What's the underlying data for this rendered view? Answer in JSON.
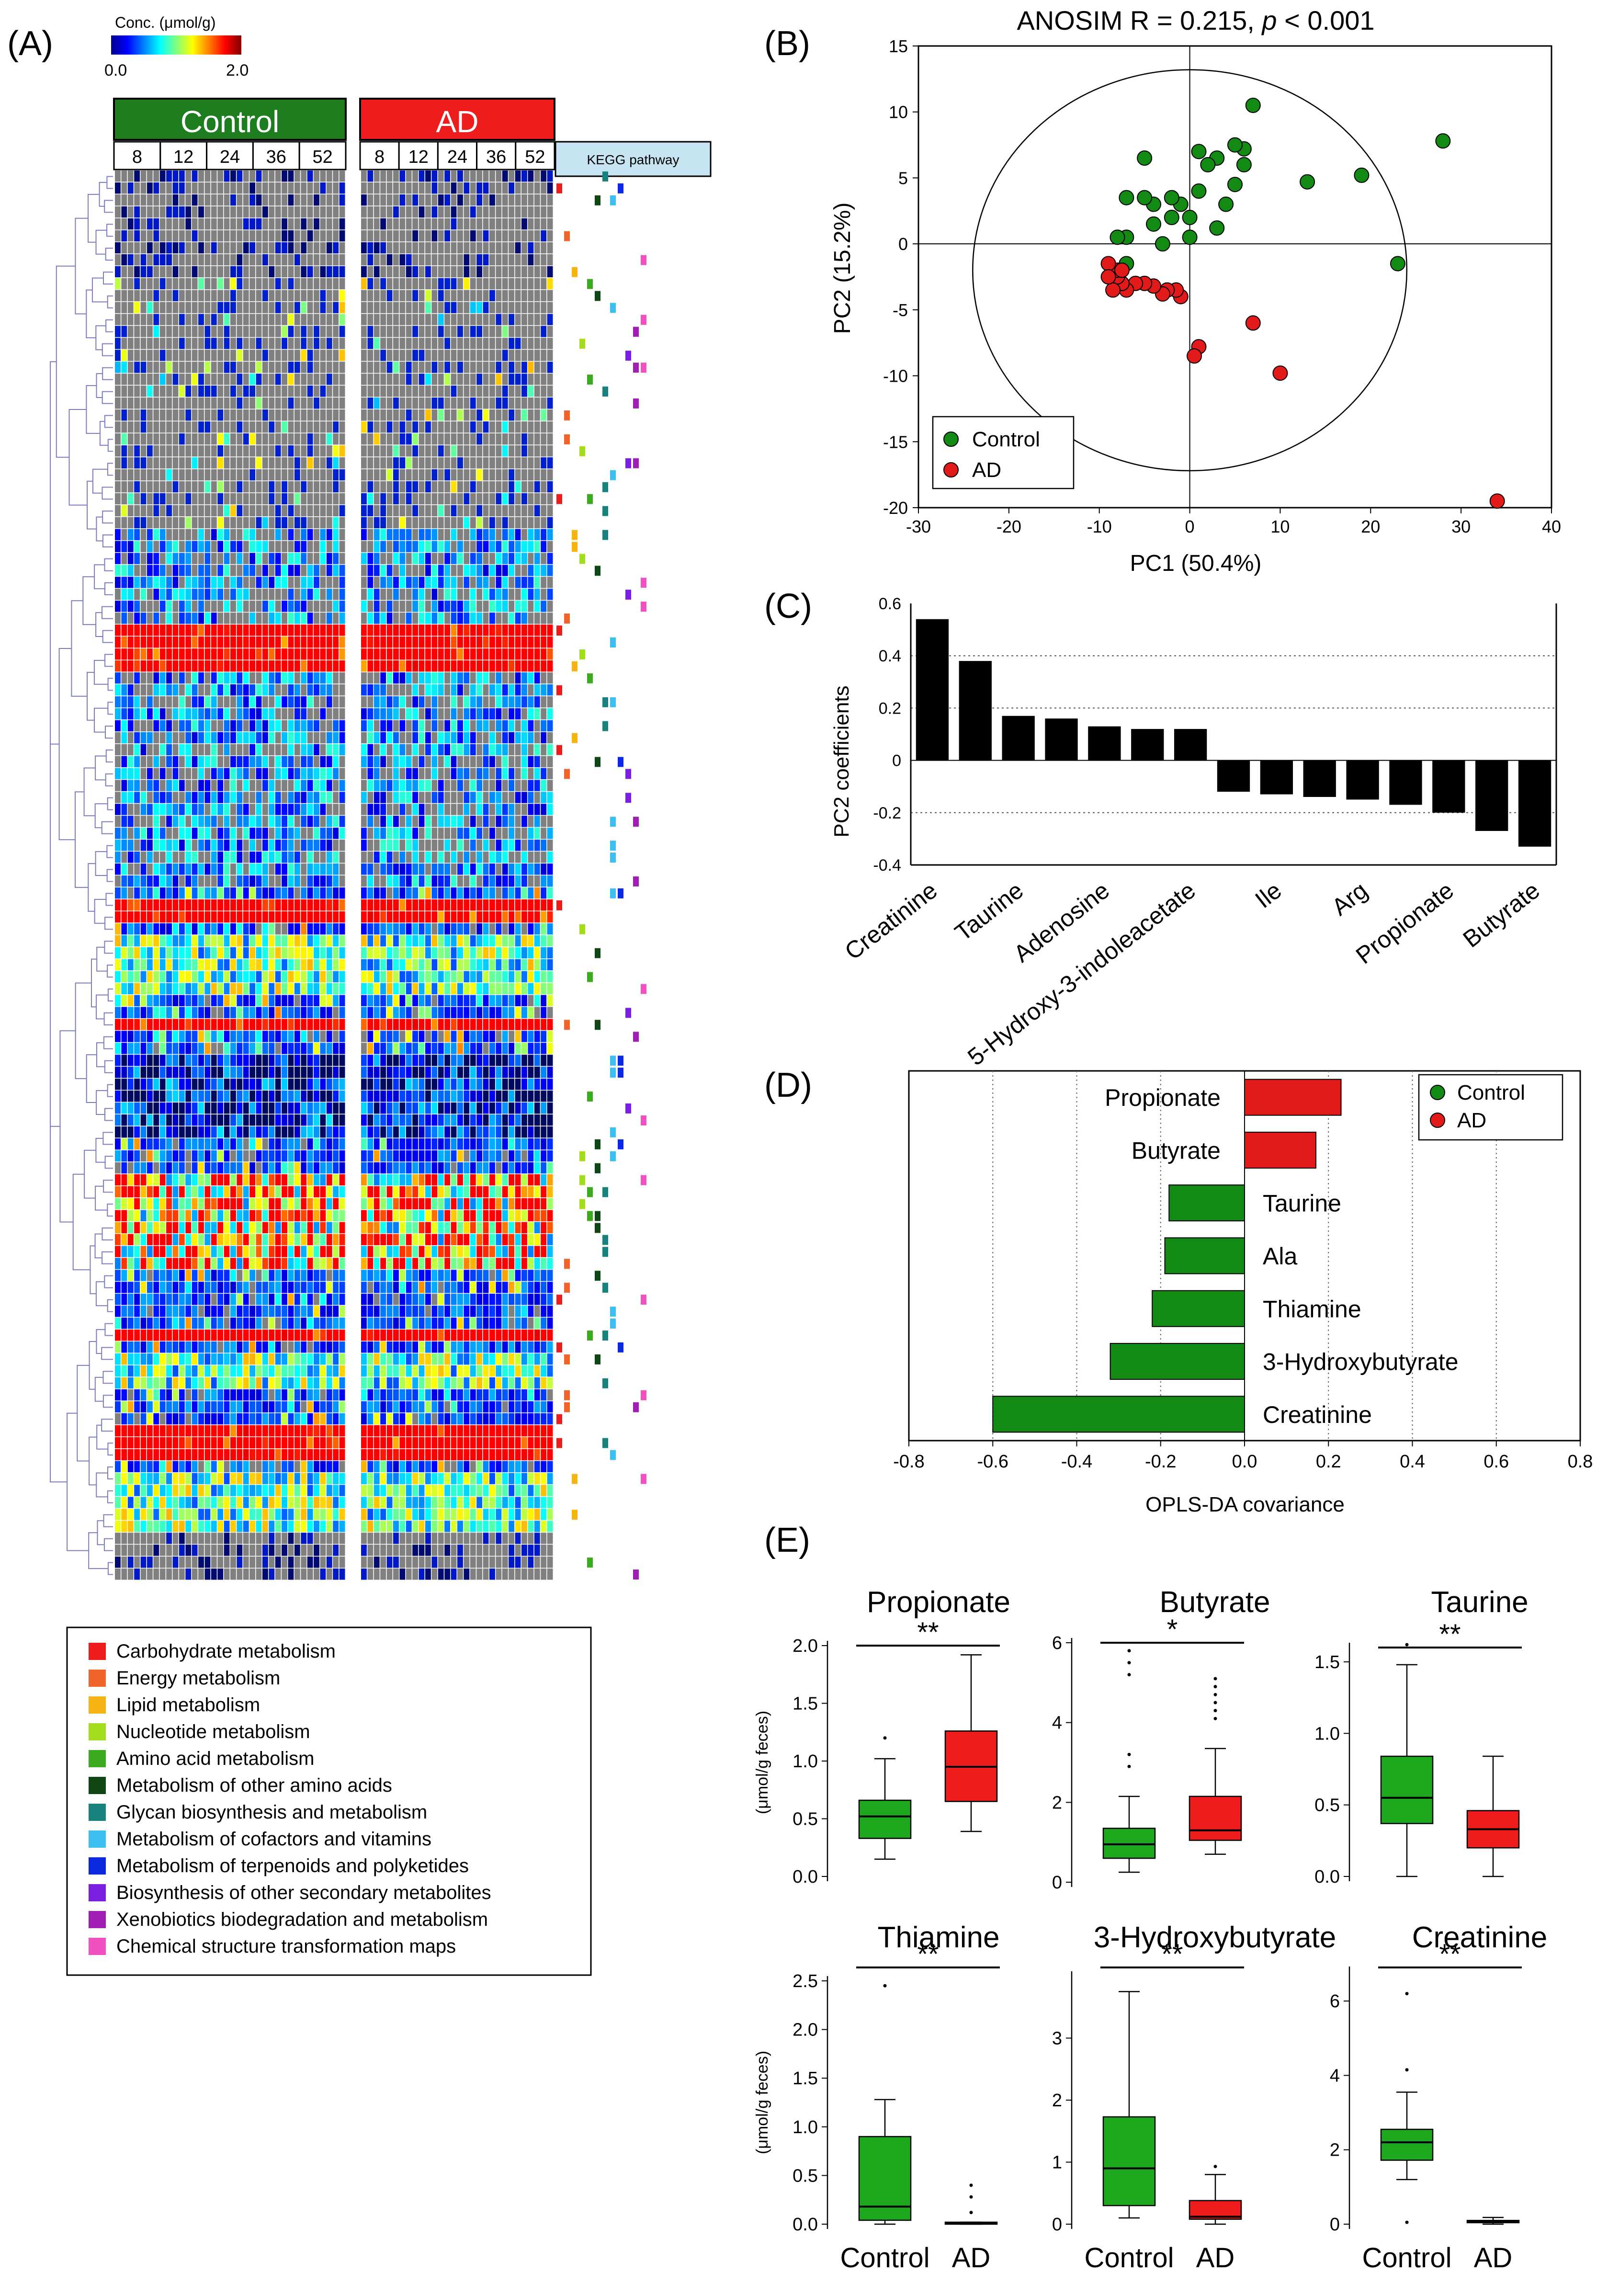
{
  "panels": {
    "A": "(A)",
    "B": "(B)",
    "C": "(C)",
    "D": "(D)",
    "E": "(E)"
  },
  "heatmap": {
    "colorbar_title": "Conc. (μmol/g)",
    "colorbar_min": "0.0",
    "colorbar_max": "2.0",
    "colors": {
      "control": "#1e7d1e",
      "ad": "#ee1c1c",
      "kegg": "#c6e4f2",
      "na": "#808080"
    },
    "control_label": "Control",
    "ad_label": "AD",
    "timepoints": [
      "8",
      "12",
      "24",
      "36",
      "52"
    ],
    "kegg_label": "KEGG pathway",
    "legend": [
      {
        "label": "Carbohydrate metabolism",
        "color": "#ee1c1c"
      },
      {
        "label": "Energy metabolism",
        "color": "#f0642a"
      },
      {
        "label": "Lipid metabolism",
        "color": "#f5b414"
      },
      {
        "label": "Nucleotide metabolism",
        "color": "#a4dc1e"
      },
      {
        "label": "Amino acid metabolism",
        "color": "#3caa1e"
      },
      {
        "label": "Metabolism of other amino acids",
        "color": "#0f4614"
      },
      {
        "label": "Glycan biosynthesis and metabolism",
        "color": "#18827e"
      },
      {
        "label": "Metabolism of cofactors and vitamins",
        "color": "#3cbef0"
      },
      {
        "label": "Metabolism of terpenoids and polyketides",
        "color": "#0a28dc"
      },
      {
        "label": "Biosynthesis of other secondary metabolites",
        "color": "#7a1ee0"
      },
      {
        "label": "Xenobiotics biodegradation and metabolism",
        "color": "#a01eb4"
      },
      {
        "label": "Chemical structure transformation maps",
        "color": "#f050c0"
      }
    ]
  },
  "chart_data": [
    {
      "type": "scatter",
      "panel": "B",
      "title": "ANOSIM R = 0.215, p < 0.001",
      "title_main": "ANOSIM R = 0.215, ",
      "title_p": "p",
      "title_rest": " < 0.001",
      "xlabel": "PC1 (50.4%)",
      "ylabel": "PC2 (15.2%)",
      "xlim": [
        -30,
        40
      ],
      "ylim": [
        -20,
        15
      ],
      "xticks": [
        -30,
        -20,
        -10,
        0,
        10,
        20,
        30,
        40
      ],
      "yticks": [
        15,
        10,
        5,
        0,
        -5,
        -10,
        -15,
        -20
      ],
      "ellipse": {
        "cx": 0,
        "cy": -2,
        "rx": 24,
        "ry": 15.2
      },
      "series": [
        {
          "name": "Control",
          "color": "#138a13",
          "points": [
            [
              28,
              7.8
            ],
            [
              19,
              5.2
            ],
            [
              23,
              -1.5
            ],
            [
              13,
              4.7
            ],
            [
              7,
              10.5
            ],
            [
              6,
              7.2
            ],
            [
              6,
              6
            ],
            [
              5,
              4.5
            ],
            [
              5,
              7.5
            ],
            [
              4,
              3
            ],
            [
              3,
              6.5
            ],
            [
              3,
              1.2
            ],
            [
              2,
              6
            ],
            [
              1,
              4
            ],
            [
              1,
              7
            ],
            [
              0,
              2
            ],
            [
              0,
              0.5
            ],
            [
              -1,
              3
            ],
            [
              -2,
              2
            ],
            [
              -2,
              3.5
            ],
            [
              -3,
              0
            ],
            [
              -4,
              1.5
            ],
            [
              -4,
              3
            ],
            [
              -5,
              3.5
            ],
            [
              -5,
              6.5
            ],
            [
              -7,
              3.5
            ],
            [
              -7,
              0.5
            ],
            [
              -7,
              -1.5
            ],
            [
              -8,
              0.5
            ],
            [
              -8,
              -2
            ]
          ]
        },
        {
          "name": "AD",
          "color": "#e31a1a",
          "points": [
            [
              34,
              -19.5
            ],
            [
              10,
              -9.8
            ],
            [
              7,
              -6
            ],
            [
              1,
              -7.8
            ],
            [
              0.5,
              -8.5
            ],
            [
              -1,
              -4
            ],
            [
              -1.5,
              -3.5
            ],
            [
              -2.5,
              -3.5
            ],
            [
              -3,
              -3.8
            ],
            [
              -4,
              -3.2
            ],
            [
              -5,
              -3
            ],
            [
              -6,
              -3
            ],
            [
              -7,
              -3.5
            ],
            [
              -7.5,
              -3
            ],
            [
              -8,
              -2.5
            ],
            [
              -8.5,
              -3.5
            ],
            [
              -8,
              -2
            ],
            [
              -9,
              -1.5
            ],
            [
              -9,
              -2.5
            ],
            [
              -7.5,
              -2
            ]
          ]
        }
      ]
    },
    {
      "type": "bar",
      "panel": "C",
      "ylabel": "PC2 coefficients",
      "ylim": [
        -0.4,
        0.6
      ],
      "yticks": [
        "0.6",
        "0.4",
        "0.2",
        "0",
        "-0.2",
        "-0.4"
      ],
      "values": [
        0.54,
        0.38,
        0.17,
        0.16,
        0.13,
        0.12,
        0.12,
        -0.12,
        -0.13,
        -0.14,
        -0.15,
        -0.17,
        -0.2,
        -0.27,
        -0.33
      ],
      "tick_labels": [
        {
          "label": "Creatinine",
          "index": 0
        },
        {
          "label": "Taurine",
          "index": 2
        },
        {
          "label": "Adenosine",
          "index": 4
        },
        {
          "label": "5-Hydroxy-3-indoleacetate",
          "index": 6
        },
        {
          "label": "Ile",
          "index": 8
        },
        {
          "label": "Arg",
          "index": 10
        },
        {
          "label": "Propionate",
          "index": 12
        },
        {
          "label": "Butyrate",
          "index": 14
        }
      ]
    },
    {
      "type": "bar",
      "panel": "D",
      "orientation": "horizontal",
      "xlabel": "OPLS-DA covariance",
      "xlim": [
        -0.8,
        0.8
      ],
      "xticks": [
        "-0.8",
        "-0.6",
        "-0.4",
        "-0.2",
        "0.0",
        "0.2",
        "0.4",
        "0.6",
        "0.8"
      ],
      "categories": [
        "Propionate",
        "Butyrate",
        "Taurine",
        "Ala",
        "Thiamine",
        "3-Hydroxybutyrate",
        "Creatinine"
      ],
      "values": [
        0.23,
        0.17,
        -0.18,
        -0.19,
        -0.22,
        -0.32,
        -0.6
      ],
      "legend": [
        {
          "name": "Control",
          "color": "#138a13"
        },
        {
          "name": "AD",
          "color": "#e31a1a"
        }
      ]
    },
    {
      "type": "box",
      "panel": "E",
      "ylabel": "(μmol/g feces)",
      "groups": [
        "Control",
        "AD"
      ],
      "colors": {
        "Control": "#1ea81e",
        "AD": "#ee1c1c"
      },
      "plots": [
        {
          "title": "Propionate",
          "sig": "**",
          "ylim": [
            0,
            2.0
          ],
          "yticks": [
            "0.0",
            "0.5",
            "1.0",
            "1.5",
            "2.0"
          ],
          "tickvals": [
            0,
            0.5,
            1,
            1.5,
            2
          ],
          "boxes": [
            {
              "q1": 0.33,
              "med": 0.52,
              "q3": 0.66,
              "lo": 0.15,
              "hi": 1.02,
              "out": [
                1.2
              ]
            },
            {
              "q1": 0.65,
              "med": 0.95,
              "q3": 1.26,
              "lo": 0.39,
              "hi": 1.92,
              "out": []
            }
          ]
        },
        {
          "title": "Butyrate",
          "sig": "*",
          "ylim": [
            0,
            6
          ],
          "yticks": [
            "0",
            "2",
            "4",
            "6"
          ],
          "tickvals": [
            0,
            2,
            4,
            6
          ],
          "boxes": [
            {
              "q1": 0.6,
              "med": 0.95,
              "q3": 1.35,
              "lo": 0.25,
              "hi": 2.15,
              "out": [
                2.9,
                3.2,
                5.2,
                5.5,
                5.8
              ]
            },
            {
              "q1": 1.05,
              "med": 1.3,
              "q3": 2.15,
              "lo": 0.7,
              "hi": 3.35,
              "out": [
                4.1,
                4.3,
                4.5,
                4.7,
                4.9,
                5.1
              ]
            }
          ]
        },
        {
          "title": "Taurine",
          "sig": "**",
          "ylim": [
            0,
            1.6
          ],
          "yticks": [
            "0.0",
            "0.5",
            "1.0",
            "1.5"
          ],
          "tickvals": [
            0,
            0.5,
            1,
            1.5
          ],
          "boxes": [
            {
              "q1": 0.37,
              "med": 0.55,
              "q3": 0.84,
              "lo": 0.0,
              "hi": 1.48,
              "out": [
                1.62
              ]
            },
            {
              "q1": 0.2,
              "med": 0.33,
              "q3": 0.46,
              "lo": 0.0,
              "hi": 0.84,
              "out": []
            }
          ]
        },
        {
          "title": "Thiamine",
          "sig": "**",
          "ylim": [
            0,
            2.5
          ],
          "yticks": [
            "0.0",
            "0.5",
            "1.0",
            "1.5",
            "2.0",
            "2.5"
          ],
          "tickvals": [
            0,
            0.5,
            1,
            1.5,
            2,
            2.5
          ],
          "boxes": [
            {
              "q1": 0.04,
              "med": 0.18,
              "q3": 0.9,
              "lo": 0.0,
              "hi": 1.28,
              "out": [
                2.45
              ]
            },
            {
              "q1": 0.0,
              "med": 0.01,
              "q3": 0.02,
              "lo": 0.0,
              "hi": 0.02,
              "out": [
                0.12,
                0.28,
                0.4
              ]
            }
          ]
        },
        {
          "title": "3-Hydroxybutyrate",
          "sig": "**",
          "ylim": [
            0,
            4
          ],
          "yticks": [
            "0",
            "1",
            "2",
            "3"
          ],
          "tickvals": [
            0,
            1,
            2,
            3
          ],
          "boxes": [
            {
              "q1": 0.3,
              "med": 0.9,
              "q3": 1.73,
              "lo": 0.1,
              "hi": 3.75,
              "out": []
            },
            {
              "q1": 0.08,
              "med": 0.12,
              "q3": 0.38,
              "lo": 0.0,
              "hi": 0.8,
              "out": [
                0.93
              ]
            }
          ]
        },
        {
          "title": "Creatinine",
          "sig": "**",
          "ylim": [
            0,
            6.8
          ],
          "yticks": [
            "0",
            "2",
            "4",
            "6"
          ],
          "tickvals": [
            0,
            2,
            4,
            6
          ],
          "boxes": [
            {
              "q1": 1.72,
              "med": 2.2,
              "q3": 2.55,
              "lo": 1.2,
              "hi": 3.55,
              "out": [
                0.05,
                4.15,
                6.2
              ]
            },
            {
              "q1": 0.04,
              "med": 0.08,
              "q3": 0.1,
              "lo": 0.0,
              "hi": 0.18,
              "out": []
            }
          ]
        }
      ]
    }
  ]
}
